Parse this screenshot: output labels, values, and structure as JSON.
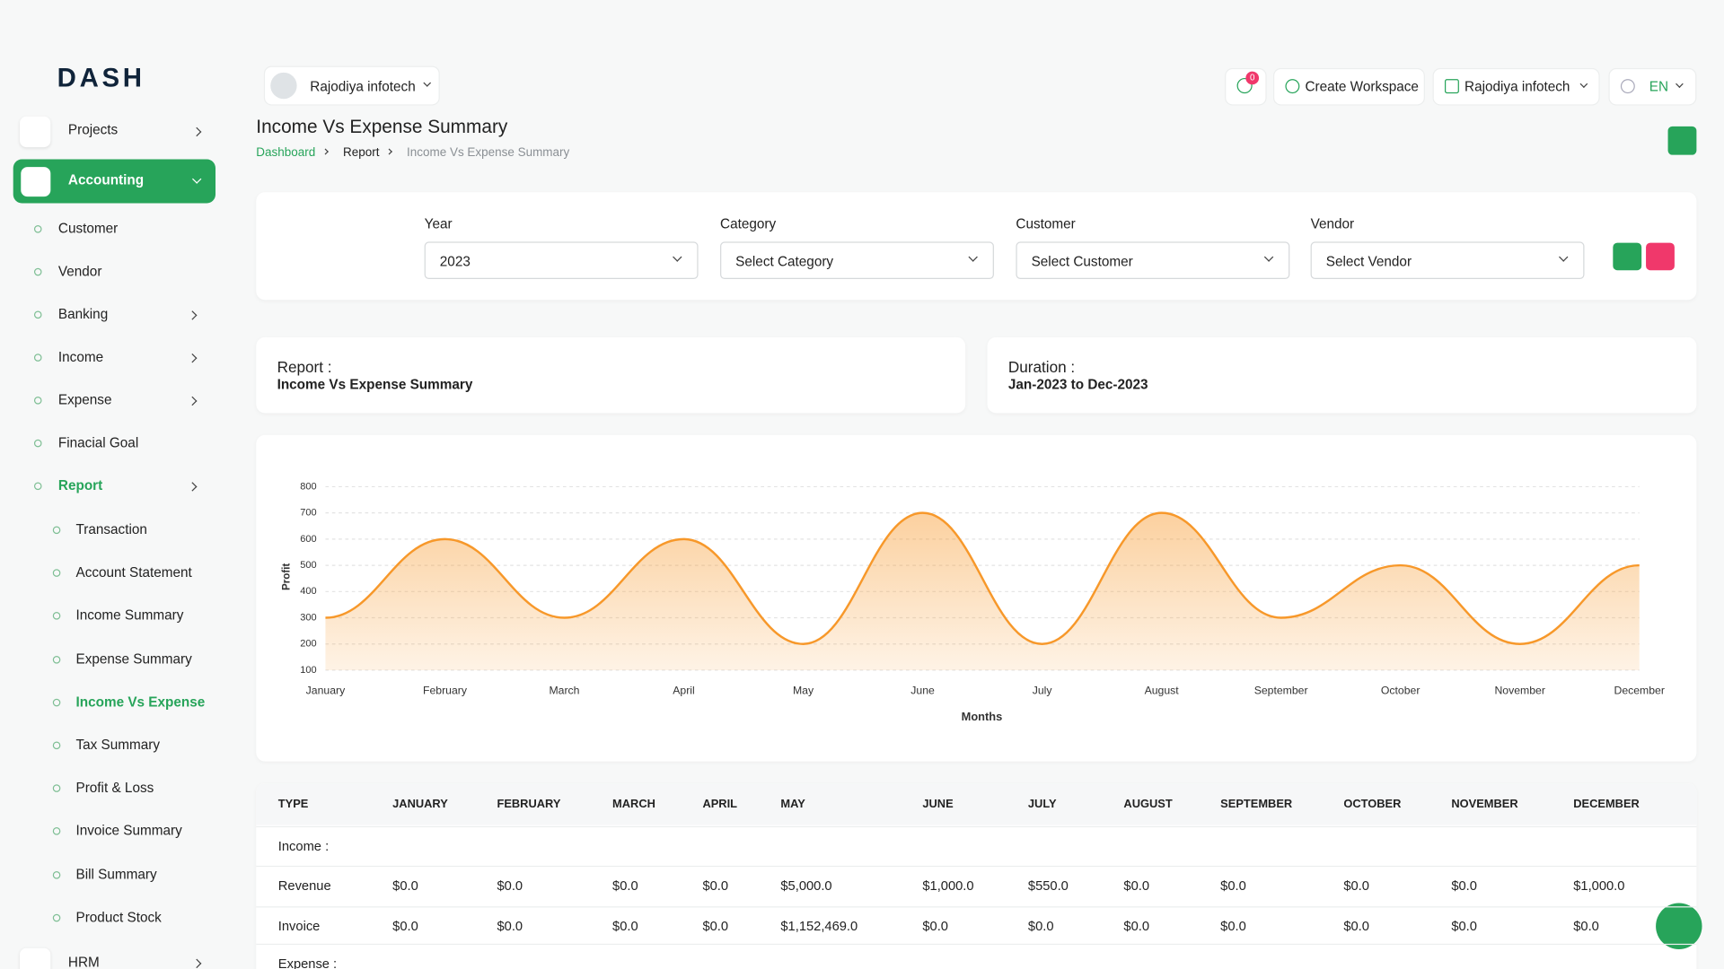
{
  "logo": "DASH",
  "sidebar": {
    "projects": "Projects",
    "accounting": "Accounting",
    "accounting_items": [
      "Customer",
      "Vendor",
      "Banking",
      "Income",
      "Expense",
      "Finacial Goal",
      "Report"
    ],
    "report_items": [
      "Transaction",
      "Account Statement",
      "Income Summary",
      "Expense Summary",
      "Income Vs Expense",
      "Tax Summary",
      "Profit & Loss",
      "Invoice Summary",
      "Bill Summary",
      "Product Stock"
    ],
    "hrm": "HRM"
  },
  "header": {
    "workspace": "Rajodiya infotech",
    "notifications": "0",
    "create_workspace": "Create Workspace",
    "user": "Rajodiya infotech",
    "language": "EN"
  },
  "page": {
    "title": "Income Vs Expense Summary",
    "breadcrumb": [
      "Dashboard",
      "Report",
      "Income Vs Expense Summary"
    ]
  },
  "filters": {
    "labels": [
      "Year",
      "Category",
      "Customer",
      "Vendor"
    ],
    "values": [
      "2023",
      "Select Category",
      "Select Customer",
      "Select Vendor"
    ]
  },
  "report_info": {
    "report_label": "Report :",
    "report_value": "Income Vs Expense Summary",
    "duration_label": "Duration :",
    "duration_value": "Jan-2023 to Dec-2023"
  },
  "chart_data": {
    "type": "area",
    "x_label": "Months",
    "y_label": "Profit",
    "categories": [
      "January",
      "February",
      "March",
      "April",
      "May",
      "June",
      "July",
      "August",
      "September",
      "October",
      "November",
      "December"
    ],
    "values": [
      300,
      600,
      300,
      600,
      200,
      700,
      200,
      700,
      300,
      500,
      200,
      500
    ],
    "color": "#f7982a",
    "ylim": [
      100,
      800
    ],
    "yticks": [
      100,
      200,
      300,
      400,
      500,
      600,
      700,
      800
    ],
    "grid": true
  },
  "table": {
    "header": [
      "TYPE",
      "JANUARY",
      "FEBRUARY",
      "MARCH",
      "APRIL",
      "MAY",
      "JUNE",
      "JULY",
      "AUGUST",
      "SEPTEMBER",
      "OCTOBER",
      "NOVEMBER",
      "DECEMBER"
    ],
    "rows": [
      [
        "Income :"
      ],
      [
        "Revenue",
        "$0.0",
        "$0.0",
        "$0.0",
        "$0.0",
        "$5,000.0",
        "$1,000.0",
        "$550.0",
        "$0.0",
        "$0.0",
        "$0.0",
        "$0.0",
        "$1,000.0"
      ],
      [
        "Invoice",
        "$0.0",
        "$0.0",
        "$0.0",
        "$0.0",
        "$1,152,469.0",
        "$0.0",
        "$0.0",
        "$0.0",
        "$0.0",
        "$0.0",
        "$0.0",
        "$0.0"
      ],
      [
        "Expense :"
      ]
    ]
  }
}
